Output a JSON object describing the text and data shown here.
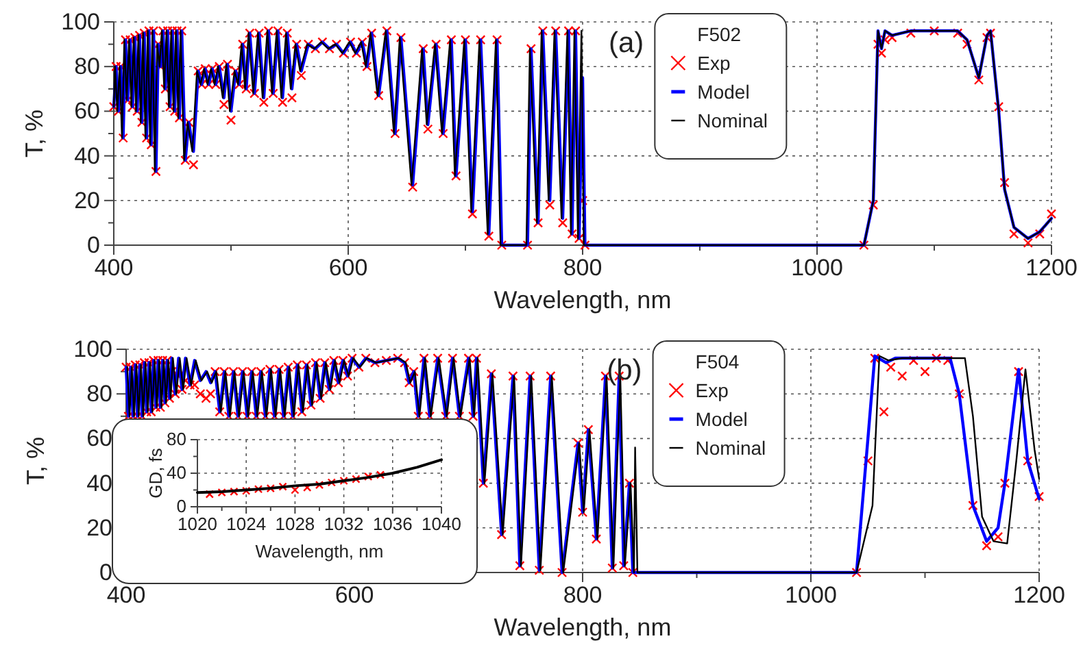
{
  "chart_data": [
    {
      "type": "line",
      "xlabel": "Wavelength, nm",
      "ylabel": "T, %",
      "legend_title": "F502",
      "annotations": [
        "(a)"
      ],
      "xlim": [
        400,
        1200
      ],
      "ylim": [
        0,
        100
      ],
      "xticks": [
        400,
        {
          "value": 500,
          "label": null
        },
        600,
        {
          "value": 700,
          "label": null
        },
        800,
        {
          "value": 900,
          "label": null
        },
        1000,
        {
          "value": 1100,
          "label": null
        },
        1200
      ],
      "yticks": [
        0,
        {
          "value": 10,
          "label": null
        },
        20,
        {
          "value": 30,
          "label": null
        },
        40,
        {
          "value": 50,
          "label": null
        },
        60,
        {
          "value": 70,
          "label": null
        },
        80,
        {
          "value": 90,
          "label": null
        },
        100
      ],
      "grid": true,
      "legend": "top",
      "series": [
        {
          "name": "Exp",
          "type": "scatter",
          "marker": "cross",
          "color": "#ff0000",
          "x": [
            400,
            402,
            404,
            406,
            408,
            410,
            412,
            414,
            416,
            418,
            420,
            422,
            424,
            426,
            428,
            430,
            432,
            434,
            436,
            438,
            440,
            442,
            444,
            446,
            448,
            450,
            452,
            454,
            456,
            458,
            461,
            464,
            468,
            472,
            475,
            478,
            481,
            484,
            487,
            490,
            494,
            497,
            500,
            504,
            507,
            510,
            513,
            516,
            520,
            524,
            528,
            532,
            536,
            540,
            544,
            548,
            552,
            556,
            560,
            566,
            572,
            578,
            584,
            590,
            596,
            602,
            607,
            612,
            616,
            620,
            626,
            633,
            640,
            645,
            655,
            664,
            668,
            675,
            681,
            688,
            692,
            700,
            706,
            713,
            720,
            727,
            731,
            753,
            756,
            762,
            766,
            772,
            777,
            783,
            788,
            791,
            794,
            797,
            800,
            802,
            1040,
            1048,
            1052,
            1055,
            1058,
            1064,
            1080,
            1100,
            1120,
            1128,
            1138,
            1145,
            1148,
            1155,
            1160,
            1168,
            1180,
            1190,
            1200
          ],
          "values": [
            62,
            80,
            60,
            80,
            48,
            92,
            65,
            92,
            62,
            93,
            60,
            94,
            55,
            95,
            48,
            96,
            45,
            96,
            33,
            90,
            80,
            96,
            70,
            96,
            62,
            96,
            60,
            96,
            57,
            96,
            38,
            55,
            36,
            78,
            72,
            79,
            72,
            79,
            72,
            80,
            63,
            81,
            56,
            78,
            72,
            90,
            70,
            95,
            68,
            95,
            64,
            96,
            68,
            96,
            64,
            95,
            66,
            90,
            76,
            90,
            88,
            91,
            88,
            90,
            86,
            91,
            86,
            91,
            80,
            95,
            67,
            96,
            50,
            93,
            26,
            88,
            52,
            90,
            50,
            92,
            31,
            92,
            14,
            92,
            4,
            92,
            0,
            0,
            88,
            10,
            96,
            18,
            96,
            10,
            96,
            5,
            96,
            3,
            20,
            0,
            0,
            18,
            90,
            86,
            92,
            93,
            95,
            96,
            95,
            90,
            74,
            93,
            95,
            62,
            28,
            5,
            1,
            5,
            14
          ]
        },
        {
          "name": "Model",
          "type": "line",
          "color": "#0000ff",
          "x": [
            400,
            402,
            404,
            406,
            408,
            410,
            412,
            414,
            416,
            418,
            420,
            422,
            424,
            426,
            428,
            430,
            432,
            434,
            436,
            438,
            440,
            442,
            444,
            446,
            448,
            450,
            452,
            454,
            456,
            458,
            461,
            464,
            468,
            472,
            475,
            478,
            481,
            484,
            487,
            490,
            494,
            497,
            500,
            504,
            507,
            510,
            513,
            516,
            520,
            524,
            528,
            532,
            536,
            540,
            544,
            548,
            552,
            556,
            560,
            566,
            572,
            578,
            584,
            590,
            596,
            602,
            607,
            612,
            616,
            620,
            626,
            633,
            640,
            645,
            655,
            664,
            668,
            675,
            681,
            688,
            692,
            700,
            706,
            713,
            720,
            727,
            731,
            753,
            756,
            762,
            766,
            772,
            777,
            783,
            788,
            791,
            794,
            797,
            800,
            802,
            1040,
            1048,
            1052,
            1055,
            1058,
            1064,
            1080,
            1100,
            1120,
            1128,
            1138,
            1145,
            1148,
            1155,
            1160,
            1168,
            1180,
            1190,
            1200
          ],
          "values": [
            62,
            80,
            60,
            80,
            48,
            92,
            65,
            92,
            62,
            93,
            60,
            94,
            55,
            95,
            48,
            96,
            45,
            96,
            33,
            90,
            80,
            96,
            70,
            96,
            62,
            96,
            60,
            96,
            57,
            96,
            38,
            55,
            42,
            78,
            72,
            79,
            72,
            79,
            72,
            80,
            66,
            81,
            60,
            78,
            72,
            90,
            70,
            95,
            68,
            95,
            66,
            96,
            68,
            96,
            66,
            95,
            70,
            90,
            78,
            90,
            88,
            91,
            88,
            90,
            86,
            91,
            86,
            91,
            80,
            95,
            67,
            96,
            50,
            93,
            27,
            88,
            54,
            90,
            50,
            92,
            31,
            92,
            15,
            92,
            5,
            92,
            0,
            0,
            88,
            10,
            96,
            20,
            96,
            12,
            96,
            5,
            96,
            3,
            75,
            0,
            0,
            20,
            96,
            88,
            96,
            94,
            96,
            96,
            96,
            92,
            75,
            94,
            96,
            60,
            25,
            8,
            3,
            6,
            12
          ]
        },
        {
          "name": "Nominal",
          "type": "line",
          "color": "#000000",
          "x": [
            400,
            401,
            403,
            405,
            407,
            409,
            411,
            413,
            415,
            417,
            419,
            421,
            423,
            425,
            427,
            429,
            431,
            433,
            435,
            437,
            439,
            441,
            443,
            445,
            447,
            449,
            451,
            453,
            455,
            457,
            460,
            463,
            467,
            471,
            474,
            477,
            480,
            483,
            486,
            489,
            493,
            496,
            499,
            503,
            506,
            509,
            512,
            515,
            519,
            523,
            527,
            531,
            535,
            539,
            543,
            547,
            551,
            555,
            559,
            565,
            571,
            577,
            583,
            589,
            595,
            601,
            606,
            611,
            615,
            619,
            625,
            632,
            639,
            644,
            654,
            663,
            667,
            674,
            680,
            687,
            691,
            699,
            705,
            712,
            719,
            726,
            730,
            752,
            755,
            761,
            765,
            771,
            776,
            782,
            787,
            790,
            793,
            796,
            799,
            801,
            1040,
            1048,
            1052,
            1055,
            1058,
            1064,
            1080,
            1100,
            1120,
            1128,
            1138,
            1145,
            1148,
            1155,
            1160,
            1168,
            1180,
            1190,
            1200
          ],
          "values": [
            62,
            80,
            60,
            80,
            48,
            92,
            65,
            92,
            62,
            93,
            60,
            94,
            55,
            95,
            48,
            96,
            45,
            96,
            33,
            90,
            80,
            96,
            70,
            96,
            62,
            96,
            60,
            96,
            57,
            96,
            38,
            55,
            42,
            78,
            72,
            79,
            72,
            79,
            72,
            80,
            66,
            81,
            60,
            78,
            72,
            90,
            70,
            95,
            68,
            95,
            66,
            96,
            68,
            96,
            66,
            95,
            70,
            90,
            78,
            90,
            88,
            91,
            88,
            90,
            86,
            91,
            86,
            91,
            80,
            95,
            67,
            96,
            50,
            93,
            27,
            88,
            54,
            90,
            50,
            92,
            31,
            92,
            15,
            92,
            5,
            92,
            0,
            0,
            88,
            10,
            96,
            20,
            96,
            12,
            96,
            5,
            96,
            3,
            96,
            0,
            0,
            20,
            96,
            88,
            96,
            94,
            96,
            96,
            96,
            92,
            75,
            94,
            96,
            60,
            25,
            8,
            3,
            6,
            12
          ]
        }
      ]
    },
    {
      "type": "line",
      "xlabel": "Wavelength, nm",
      "ylabel": "T, %",
      "legend_title": "F504",
      "annotations": [
        "(b)"
      ],
      "xlim": [
        400,
        1200
      ],
      "ylim": [
        0,
        100
      ],
      "xticks": [
        400,
        {
          "value": 500,
          "label": null
        },
        600,
        {
          "value": 700,
          "label": null
        },
        800,
        {
          "value": 900,
          "label": null
        },
        1000,
        {
          "value": 1100,
          "label": null
        },
        1200
      ],
      "yticks": [
        0,
        {
          "value": 10,
          "label": null
        },
        20,
        {
          "value": 30,
          "label": null
        },
        40,
        {
          "value": 50,
          "label": null
        },
        60,
        {
          "value": 70,
          "label": null
        },
        80,
        {
          "value": 90,
          "label": null
        },
        100
      ],
      "grid": true,
      "legend": "top",
      "series": [
        {
          "name": "Exp",
          "type": "scatter",
          "marker": "cross",
          "color": "#ff0000",
          "x": [
            400,
            402,
            404,
            406,
            408,
            410,
            412,
            414,
            416,
            418,
            420,
            422,
            424,
            426,
            428,
            430,
            432,
            434,
            436,
            438,
            440,
            443,
            446,
            449,
            452,
            456,
            460,
            465,
            470,
            474,
            478,
            482,
            486,
            490,
            494,
            498,
            502,
            506,
            510,
            514,
            518,
            522,
            526,
            530,
            534,
            538,
            542,
            546,
            550,
            554,
            558,
            562,
            566,
            570,
            574,
            578,
            582,
            586,
            590,
            594,
            598,
            604,
            610,
            618,
            628,
            638,
            644,
            648,
            652,
            656,
            661,
            666,
            673,
            680,
            686,
            692,
            700,
            704,
            707,
            713,
            720,
            729,
            739,
            745,
            754,
            762,
            772,
            782,
            796,
            800,
            805,
            812,
            820,
            826,
            832,
            836,
            841,
            844,
            1040,
            1050,
            1056,
            1064,
            1070,
            1080,
            1090,
            1100,
            1110,
            1120,
            1130,
            1142,
            1154,
            1164,
            1170,
            1182,
            1190,
            1200
          ],
          "values": [
            92,
            70,
            92,
            70,
            93,
            70,
            93,
            70,
            94,
            72,
            94,
            72,
            95,
            74,
            95,
            74,
            95,
            76,
            95,
            78,
            90,
            80,
            88,
            82,
            86,
            84,
            84,
            80,
            78,
            80,
            90,
            72,
            90,
            70,
            90,
            70,
            90,
            70,
            90,
            70,
            90,
            70,
            91,
            70,
            91,
            70,
            92,
            70,
            93,
            72,
            93,
            75,
            94,
            78,
            94,
            82,
            95,
            85,
            95,
            88,
            96,
            92,
            96,
            94,
            95,
            96,
            94,
            85,
            90,
            70,
            96,
            70,
            96,
            70,
            96,
            70,
            96,
            70,
            96,
            40,
            89,
            17,
            88,
            3,
            88,
            1,
            88,
            0,
            58,
            27,
            64,
            15,
            88,
            2,
            88,
            3,
            40,
            0,
            0,
            50,
            96,
            72,
            92,
            88,
            95,
            90,
            96,
            95,
            80,
            30,
            12,
            16,
            40,
            90,
            50,
            34
          ]
        },
        {
          "name": "Model",
          "type": "line",
          "color": "#0000ff",
          "x": [
            400,
            402,
            404,
            406,
            408,
            410,
            412,
            414,
            416,
            418,
            420,
            422,
            424,
            426,
            428,
            430,
            432,
            434,
            436,
            438,
            440,
            443,
            446,
            449,
            452,
            456,
            460,
            465,
            470,
            474,
            478,
            482,
            486,
            490,
            494,
            498,
            502,
            506,
            510,
            514,
            518,
            522,
            526,
            530,
            534,
            538,
            542,
            546,
            550,
            554,
            558,
            562,
            566,
            570,
            574,
            578,
            582,
            586,
            590,
            594,
            598,
            604,
            610,
            618,
            628,
            638,
            644,
            648,
            652,
            656,
            661,
            666,
            673,
            680,
            686,
            692,
            700,
            704,
            707,
            713,
            720,
            729,
            739,
            745,
            754,
            762,
            772,
            782,
            796,
            800,
            805,
            812,
            820,
            826,
            832,
            836,
            841,
            844,
            1040,
            1050,
            1056,
            1066,
            1074,
            1100,
            1122,
            1130,
            1142,
            1154,
            1164,
            1170,
            1182,
            1190,
            1200
          ],
          "values": [
            92,
            70,
            92,
            70,
            93,
            70,
            93,
            70,
            94,
            72,
            94,
            72,
            95,
            74,
            95,
            74,
            95,
            76,
            95,
            78,
            96,
            80,
            96,
            82,
            96,
            84,
            95,
            86,
            90,
            85,
            90,
            72,
            90,
            70,
            90,
            70,
            90,
            70,
            90,
            70,
            90,
            70,
            91,
            70,
            91,
            70,
            92,
            70,
            93,
            72,
            93,
            75,
            94,
            78,
            94,
            82,
            95,
            85,
            95,
            88,
            96,
            92,
            96,
            94,
            95,
            96,
            94,
            85,
            90,
            70,
            96,
            70,
            96,
            70,
            96,
            70,
            96,
            70,
            96,
            40,
            89,
            17,
            88,
            3,
            88,
            1,
            88,
            0,
            58,
            27,
            64,
            15,
            88,
            2,
            88,
            3,
            40,
            0,
            0,
            60,
            97,
            94,
            96,
            96,
            96,
            80,
            30,
            14,
            20,
            40,
            91,
            50,
            33
          ]
        },
        {
          "name": "Nominal",
          "type": "line",
          "color": "#000000",
          "x": [
            401,
            403,
            405,
            407,
            409,
            411,
            413,
            415,
            417,
            419,
            421,
            423,
            425,
            427,
            429,
            431,
            433,
            435,
            437,
            439,
            441,
            444,
            447,
            450,
            453,
            457,
            461,
            466,
            471,
            475,
            479,
            483,
            487,
            491,
            495,
            499,
            503,
            507,
            511,
            515,
            519,
            523,
            527,
            531,
            535,
            539,
            543,
            547,
            551,
            555,
            559,
            563,
            567,
            571,
            575,
            579,
            583,
            587,
            591,
            595,
            599,
            605,
            611,
            619,
            629,
            639,
            645,
            649,
            653,
            657,
            662,
            667,
            674,
            681,
            687,
            693,
            701,
            705,
            708,
            714,
            721,
            730,
            740,
            746,
            755,
            763,
            773,
            783,
            797,
            801,
            806,
            813,
            821,
            827,
            833,
            837,
            842,
            845,
            846,
            848,
            1040,
            1054,
            1060,
            1068,
            1080,
            1135,
            1142,
            1150,
            1160,
            1172,
            1180,
            1188,
            1196,
            1200
          ],
          "values": [
            92,
            70,
            92,
            70,
            93,
            70,
            93,
            70,
            94,
            72,
            94,
            72,
            95,
            74,
            95,
            74,
            95,
            76,
            95,
            78,
            96,
            80,
            96,
            82,
            96,
            84,
            95,
            86,
            90,
            85,
            90,
            72,
            90,
            70,
            90,
            70,
            90,
            70,
            90,
            70,
            90,
            70,
            91,
            70,
            91,
            70,
            92,
            70,
            93,
            72,
            93,
            75,
            94,
            78,
            94,
            82,
            95,
            85,
            95,
            88,
            96,
            92,
            96,
            94,
            95,
            96,
            94,
            85,
            90,
            70,
            96,
            70,
            96,
            70,
            96,
            70,
            96,
            70,
            96,
            40,
            89,
            17,
            88,
            3,
            88,
            1,
            88,
            0,
            58,
            27,
            64,
            15,
            88,
            2,
            88,
            3,
            40,
            0,
            56,
            0,
            0,
            30,
            97,
            95,
            96,
            96,
            70,
            25,
            14,
            13,
            50,
            91,
            55,
            42
          ]
        }
      ]
    },
    {
      "type": "line",
      "xlabel": "Wavelength, nm",
      "ylabel": "GD, fs",
      "xlim": [
        1020,
        1040
      ],
      "ylim": [
        0,
        80
      ],
      "xticks": [
        1020,
        {
          "value": 1022,
          "label": null
        },
        1024,
        {
          "value": 1026,
          "label": null
        },
        1028,
        {
          "value": 1030,
          "label": null
        },
        1032,
        {
          "value": 1034,
          "label": null
        },
        1036,
        {
          "value": 1038,
          "label": null
        },
        1040
      ],
      "yticks": [
        0,
        {
          "value": 20,
          "label": null
        },
        40,
        {
          "value": 60,
          "label": null
        },
        80
      ],
      "grid": true,
      "series": [
        {
          "type": "scatter",
          "marker": "cross",
          "color": "#ff0000",
          "x": [
            1021,
            1022,
            1023,
            1024,
            1025,
            1026,
            1027,
            1028,
            1029,
            1030,
            1031,
            1032,
            1033,
            1034,
            1035
          ],
          "values": [
            15,
            17,
            18,
            19,
            21,
            22,
            24,
            20,
            23,
            26,
            29,
            31,
            33,
            36,
            38
          ]
        },
        {
          "type": "line",
          "color": "#000000",
          "x": [
            1020,
            1022,
            1024,
            1026,
            1028,
            1030,
            1032,
            1034,
            1036,
            1038,
            1040
          ],
          "values": [
            17,
            18,
            20,
            22,
            25,
            27,
            31,
            35,
            40,
            47,
            56
          ]
        }
      ]
    }
  ]
}
